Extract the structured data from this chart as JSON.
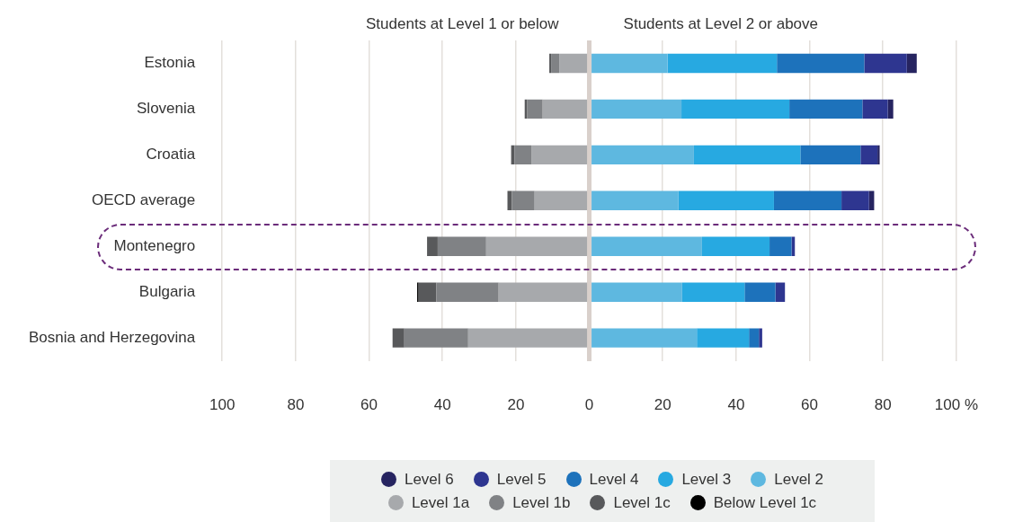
{
  "chart_data": {
    "type": "bar",
    "orientation": "horizontal",
    "stacked": true,
    "categories": [
      "Estonia",
      "Slovenia",
      "Croatia",
      "OECD average",
      "Montenegro",
      "Bulgaria",
      "Bosnia and Herzegovina"
    ],
    "series": [
      {
        "name": "Level 2",
        "color": "#5eb8e0",
        "values": [
          21.3,
          25.1,
          28.5,
          24.3,
          30.7,
          25.3,
          29.3
        ]
      },
      {
        "name": "Level 3",
        "color": "#27a9e1",
        "values": [
          29.8,
          29.4,
          29.0,
          26.0,
          18.4,
          17.0,
          14.2
        ]
      },
      {
        "name": "Level 4",
        "color": "#1d72bb",
        "values": [
          23.8,
          19.9,
          16.4,
          18.4,
          6.0,
          8.4,
          2.7
        ]
      },
      {
        "name": "Level 5",
        "color": "#2e3690",
        "values": [
          11.6,
          6.9,
          4.6,
          7.5,
          0.9,
          2.6,
          0.9
        ]
      },
      {
        "name": "Level 6",
        "color": "#262460",
        "values": [
          2.7,
          1.5,
          0.6,
          1.4,
          0,
          0,
          0
        ]
      },
      {
        "name": "Level 1a",
        "color": "#a7a9ac",
        "values": [
          -8.2,
          -12.7,
          -15.8,
          -14.9,
          -28.1,
          -24.7,
          -33.0
        ]
      },
      {
        "name": "Level 1b",
        "color": "#808285",
        "values": [
          -2.2,
          -4.2,
          -4.6,
          -6.2,
          -13.2,
          -17.0,
          -17.4
        ]
      },
      {
        "name": "Level 1c",
        "color": "#58595b",
        "values": [
          -0.5,
          -0.7,
          -0.9,
          -1.2,
          -2.9,
          -4.8,
          -3.2
        ]
      },
      {
        "name": "Below Level 1c",
        "color": "#000000",
        "values": [
          0,
          0,
          0,
          0,
          0,
          -0.4,
          0
        ]
      }
    ],
    "xlim": [
      -100,
      100
    ],
    "xticks": [
      {
        "value": -100,
        "label": "100"
      },
      {
        "value": -80,
        "label": "80"
      },
      {
        "value": -60,
        "label": "60"
      },
      {
        "value": -40,
        "label": "40"
      },
      {
        "value": -20,
        "label": "20"
      },
      0,
      20,
      40,
      60,
      80,
      {
        "value": 100,
        "label": "100 %"
      }
    ],
    "grid": "x",
    "legend": "bottom",
    "annotations": [
      "Students at Level 1 or below",
      "Students at Level 2 or above"
    ]
  }
}
